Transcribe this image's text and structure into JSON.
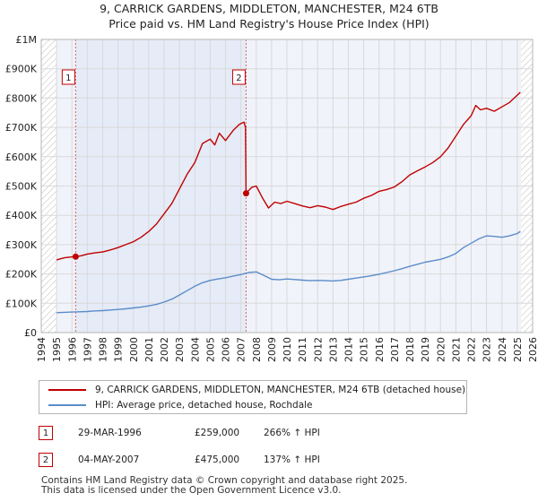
{
  "title_line1": "9, CARRICK GARDENS, MIDDLETON, MANCHESTER, M24 6TB",
  "title_line2": "Price paid vs. HM Land Registry's House Price Index (HPI)",
  "chart_data": {
    "type": "line",
    "xlim": [
      1994,
      2026
    ],
    "ylim": [
      0,
      1000000
    ],
    "yticks": [
      0,
      100000,
      200000,
      300000,
      400000,
      500000,
      600000,
      700000,
      800000,
      900000,
      1000000
    ],
    "ytick_labels": [
      "£0",
      "£100K",
      "£200K",
      "£300K",
      "£400K",
      "£500K",
      "£600K",
      "£700K",
      "£800K",
      "£900K",
      "£1M"
    ],
    "xticks": [
      1994,
      1995,
      1996,
      1997,
      1998,
      1999,
      2000,
      2001,
      2002,
      2003,
      2004,
      2005,
      2006,
      2007,
      2008,
      2009,
      2010,
      2011,
      2012,
      2013,
      2014,
      2015,
      2016,
      2017,
      2018,
      2019,
      2020,
      2021,
      2022,
      2023,
      2024,
      2025,
      2026
    ],
    "xtick_labels": [
      "1994",
      "1995",
      "1996",
      "1997",
      "1998",
      "1999",
      "2000",
      "2001",
      "2002",
      "2003",
      "2004",
      "2005",
      "2006",
      "2007",
      "2008",
      "2009",
      "2010",
      "2011",
      "2012",
      "2013",
      "2014",
      "2015",
      "2016",
      "2017",
      "2018",
      "2019",
      "2020",
      "2021",
      "2022",
      "2023",
      "2024",
      "2025",
      "2026"
    ],
    "grid": true,
    "data_range": [
      1995.0,
      2025.25
    ],
    "highlight_range": [
      1996.24,
      2007.34
    ],
    "series": [
      {
        "name": "9, CARRICK GARDENS, MIDDLETON, MANCHESTER, M24 6TB (detached house)",
        "color": "#c00000",
        "x": [
          1995.0,
          1995.5,
          1996.0,
          1996.24,
          1996.6,
          1997.0,
          1997.5,
          1998.0,
          1998.5,
          1999.0,
          1999.5,
          2000.0,
          2000.5,
          2001.0,
          2001.5,
          2002.0,
          2002.5,
          2003.0,
          2003.5,
          2004.0,
          2004.5,
          2005.0,
          2005.3,
          2005.6,
          2006.0,
          2006.5,
          2006.9,
          2007.2,
          2007.3,
          2007.34,
          2007.7,
          2008.0,
          2008.4,
          2008.8,
          2009.2,
          2009.6,
          2010.0,
          2010.5,
          2011.0,
          2011.5,
          2012.0,
          2012.5,
          2013.0,
          2013.5,
          2014.0,
          2014.5,
          2015.0,
          2015.5,
          2016.0,
          2016.5,
          2017.0,
          2017.5,
          2018.0,
          2018.5,
          2019.0,
          2019.5,
          2020.0,
          2020.5,
          2021.0,
          2021.5,
          2022.0,
          2022.3,
          2022.6,
          2023.0,
          2023.5,
          2024.0,
          2024.5,
          2025.0,
          2025.2
        ],
        "y": [
          248000,
          255000,
          258000,
          259000,
          262000,
          268000,
          272000,
          275000,
          282000,
          290000,
          300000,
          310000,
          325000,
          345000,
          370000,
          405000,
          440000,
          490000,
          540000,
          580000,
          645000,
          660000,
          640000,
          680000,
          655000,
          690000,
          710000,
          718000,
          700000,
          475000,
          495000,
          500000,
          460000,
          425000,
          445000,
          440000,
          448000,
          440000,
          432000,
          426000,
          433000,
          428000,
          420000,
          430000,
          438000,
          445000,
          458000,
          468000,
          482000,
          488000,
          497000,
          515000,
          538000,
          552000,
          565000,
          580000,
          600000,
          630000,
          670000,
          710000,
          740000,
          775000,
          760000,
          765000,
          755000,
          770000,
          785000,
          810000,
          820000
        ]
      },
      {
        "name": "HPI: Average price, detached house, Rochdale",
        "color": "#5b8cc9",
        "x": [
          1995.0,
          1995.5,
          1996.0,
          1996.5,
          1997.0,
          1997.5,
          1998.0,
          1998.5,
          1999.0,
          1999.5,
          2000.0,
          2000.5,
          2001.0,
          2001.5,
          2002.0,
          2002.5,
          2003.0,
          2003.5,
          2004.0,
          2004.5,
          2005.0,
          2005.5,
          2006.0,
          2006.5,
          2007.0,
          2007.5,
          2008.0,
          2008.5,
          2009.0,
          2009.5,
          2010.0,
          2010.5,
          2011.0,
          2011.5,
          2012.0,
          2012.5,
          2013.0,
          2013.5,
          2014.0,
          2014.5,
          2015.0,
          2015.5,
          2016.0,
          2016.5,
          2017.0,
          2017.5,
          2018.0,
          2018.5,
          2019.0,
          2019.5,
          2020.0,
          2020.5,
          2021.0,
          2021.5,
          2022.0,
          2022.5,
          2023.0,
          2023.5,
          2024.0,
          2024.5,
          2025.0,
          2025.2
        ],
        "y": [
          68000,
          69000,
          70000,
          71000,
          72000,
          74000,
          75000,
          77000,
          79000,
          81000,
          84000,
          87000,
          91000,
          96000,
          104000,
          114000,
          128000,
          143000,
          158000,
          170000,
          178000,
          183000,
          187000,
          193000,
          198000,
          205000,
          207000,
          195000,
          182000,
          180000,
          183000,
          181000,
          179000,
          177000,
          178000,
          177000,
          176000,
          178000,
          182000,
          186000,
          190000,
          194000,
          199000,
          205000,
          211000,
          218000,
          226000,
          233000,
          240000,
          245000,
          250000,
          258000,
          270000,
          290000,
          305000,
          320000,
          330000,
          328000,
          325000,
          330000,
          338000,
          345000
        ]
      }
    ],
    "markers": [
      {
        "label": "1",
        "x": 1996.24,
        "y": 259000
      },
      {
        "label": "2",
        "x": 2007.34,
        "y": 475000
      }
    ]
  },
  "legend": {
    "items": [
      {
        "label": "9, CARRICK GARDENS, MIDDLETON, MANCHESTER, M24 6TB (detached house)",
        "color": "#c00000"
      },
      {
        "label": "HPI: Average price, detached house, Rochdale",
        "color": "#5b8cc9"
      }
    ]
  },
  "transactions": [
    {
      "num": "1",
      "date": "29-MAR-1996",
      "price": "£259,000",
      "hpi": "266% ↑ HPI"
    },
    {
      "num": "2",
      "date": "04-MAY-2007",
      "price": "£475,000",
      "hpi": "137% ↑ HPI"
    }
  ],
  "footer": {
    "line1": "Contains HM Land Registry data © Crown copyright and database right 2025.",
    "line2": "This data is licensed under the Open Government Licence v3.0."
  }
}
